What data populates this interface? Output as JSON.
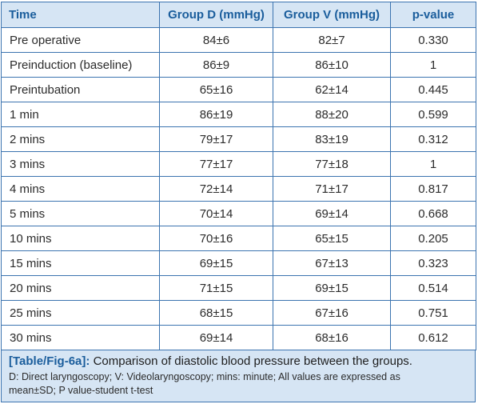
{
  "table": {
    "headers": [
      "Time",
      "Group D (mmHg)",
      "Group V (mmHg)",
      "p-value"
    ],
    "rows": [
      [
        "Pre operative",
        "84±6",
        "82±7",
        "0.330"
      ],
      [
        "Preinduction (baseline)",
        "86±9",
        "86±10",
        "1"
      ],
      [
        "Preintubation",
        "65±16",
        "62±14",
        "0.445"
      ],
      [
        "1 min",
        "86±19",
        "88±20",
        "0.599"
      ],
      [
        "2 mins",
        "79±17",
        "83±19",
        "0.312"
      ],
      [
        "3 mins",
        "77±17",
        "77±18",
        "1"
      ],
      [
        "4 mins",
        "72±14",
        "71±17",
        "0.817"
      ],
      [
        "5 mins",
        "70±14",
        "69±14",
        "0.668"
      ],
      [
        "10 mins",
        "70±16",
        "65±15",
        "0.205"
      ],
      [
        "15 mins",
        "69±15",
        "67±13",
        "0.323"
      ],
      [
        "20 mins",
        "71±15",
        "69±15",
        "0.514"
      ],
      [
        "25 mins",
        "68±15",
        "67±16",
        "0.751"
      ],
      [
        "30 mins",
        "69±14",
        "68±16",
        "0.612"
      ]
    ]
  },
  "caption": {
    "tag": "[Table/Fig-6a]:",
    "title": "Comparison of diastolic blood pressure between the groups.",
    "note_line1": "D: Direct laryngoscopy; V: Videolaryngoscopy; mins: minute; All values are expressed as",
    "note_line2": "mean±SD; P value-student t-test"
  },
  "colors": {
    "header_bg": "#d6e5f4",
    "header_text": "#1a5d9c",
    "border": "#3c74b0",
    "body_text": "#2b2b2b"
  }
}
